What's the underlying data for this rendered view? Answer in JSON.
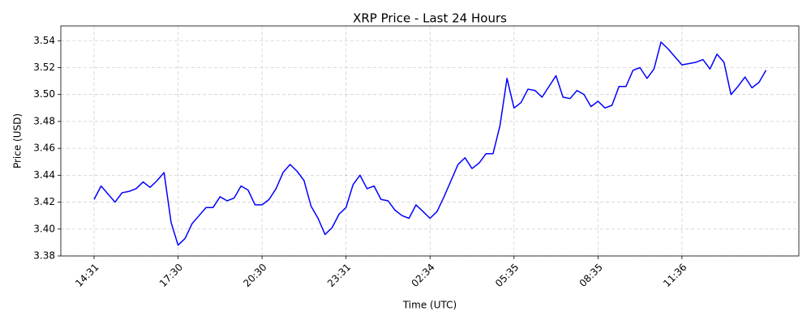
{
  "chart_data": {
    "type": "line",
    "title": "XRP Price - Last 24 Hours",
    "x_label": "Time (UTC)",
    "y_label": "Price (USD)",
    "categories": [
      "14:31",
      null,
      null,
      null,
      null,
      null,
      null,
      null,
      null,
      null,
      null,
      null,
      "17:30",
      null,
      null,
      null,
      null,
      null,
      null,
      null,
      null,
      null,
      null,
      null,
      "20:30",
      null,
      null,
      null,
      null,
      null,
      null,
      null,
      null,
      null,
      null,
      null,
      "23:31",
      null,
      null,
      null,
      null,
      null,
      null,
      null,
      null,
      null,
      null,
      null,
      "02:34",
      null,
      null,
      null,
      null,
      null,
      null,
      null,
      null,
      null,
      null,
      null,
      "05:35",
      null,
      null,
      null,
      null,
      null,
      null,
      null,
      null,
      null,
      null,
      null,
      "08:35",
      null,
      null,
      null,
      null,
      null,
      null,
      null,
      null,
      null,
      null,
      null,
      "11:36",
      null,
      null,
      null,
      null,
      null,
      null,
      null,
      null,
      null,
      null,
      null,
      null
    ],
    "values": [
      3.422,
      3.432,
      3.426,
      3.42,
      3.427,
      3.428,
      3.43,
      3.435,
      3.431,
      3.436,
      3.442,
      3.405,
      3.388,
      3.393,
      3.404,
      3.41,
      3.416,
      3.416,
      3.424,
      3.421,
      3.423,
      3.432,
      3.429,
      3.418,
      3.418,
      3.422,
      3.43,
      3.442,
      3.448,
      3.443,
      3.436,
      3.417,
      3.408,
      3.396,
      3.401,
      3.411,
      3.416,
      3.433,
      3.44,
      3.43,
      3.432,
      3.422,
      3.421,
      3.414,
      3.41,
      3.408,
      3.418,
      3.413,
      3.408,
      3.413,
      3.424,
      3.436,
      3.448,
      3.453,
      3.445,
      3.449,
      3.456,
      3.456,
      3.477,
      3.512,
      3.49,
      3.494,
      3.504,
      3.503,
      3.498,
      3.506,
      3.514,
      3.498,
      3.497,
      3.503,
      3.5,
      3.491,
      3.495,
      3.49,
      3.492,
      3.506,
      3.506,
      3.518,
      3.52,
      3.512,
      3.519,
      3.539,
      3.534,
      3.528,
      3.522,
      3.523,
      3.524,
      3.526,
      3.519,
      3.53,
      3.524,
      3.5,
      3.506,
      3.513,
      3.505,
      3.509,
      3.518
    ],
    "color": "#0000ff",
    "ylim": [
      3.38,
      3.551
    ],
    "yticks": [
      3.38,
      {
        "value": 3.4,
        "label": "3.40"
      },
      3.42,
      3.44,
      3.46,
      3.48,
      {
        "value": 3.5,
        "label": "3.50"
      },
      3.52,
      3.54
    ],
    "grid": true
  }
}
